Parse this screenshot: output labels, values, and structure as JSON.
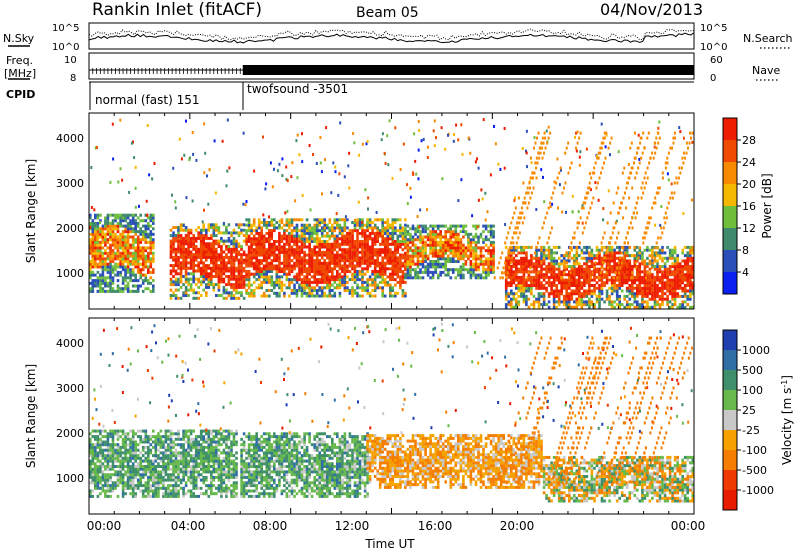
{
  "header": {
    "station": "Rankin Inlet (fitACF)",
    "beam": "Beam 05",
    "date": "04/Nov/2013"
  },
  "status_panel": {
    "nsky": {
      "label": "N.Sky",
      "ticks_left": [
        "10^5",
        "10^0"
      ],
      "label_right": "N.Search",
      "ticks_right": [
        "10^5",
        "10^0"
      ]
    },
    "freq": {
      "label": "Freq.",
      "unit": "[MHz]",
      "ticks_left": [
        "10",
        "8"
      ],
      "label_right": "Nave",
      "ticks_right": [
        "60",
        "0"
      ]
    },
    "cpid": {
      "label": "CPID",
      "modes": [
        {
          "name": "normal (fast) 151",
          "start_hour": 0,
          "end_hour": 6.1
        },
        {
          "name": "twofsound -3501",
          "start_hour": 6.1,
          "end_hour": 24
        }
      ]
    }
  },
  "chart_data": [
    {
      "type": "heatmap",
      "title": "Power",
      "ylabel": "Slant Range [km]",
      "xlabel": "",
      "xlim_hours": [
        0,
        24
      ],
      "ylim": [
        180,
        4500
      ],
      "y_ticks": [
        "1000",
        "2000",
        "3000",
        "4000"
      ],
      "colorbar": {
        "label": "Power [dB]",
        "ticks": [
          "4",
          "8",
          "12",
          "16",
          "20",
          "24",
          "28"
        ],
        "colors": [
          "#0a1ff0",
          "#2b4fb8",
          "#3f8a6d",
          "#6fbf3c",
          "#f5b800",
          "#f78a00",
          "#f04a00",
          "#ee1c00"
        ]
      },
      "echo_regions": [
        {
          "t_start": 0.0,
          "t_end": 2.6,
          "r_min": 600,
          "r_max": 2300,
          "dominant": "mid"
        },
        {
          "t_start": 3.2,
          "t_end": 6.1,
          "r_min": 450,
          "r_max": 2100,
          "dominant": "high"
        },
        {
          "t_start": 6.2,
          "t_end": 12.5,
          "r_min": 500,
          "r_max": 2200,
          "dominant": "high"
        },
        {
          "t_start": 12.5,
          "t_end": 16.0,
          "r_min": 900,
          "r_max": 2100,
          "dominant": "mid"
        },
        {
          "t_start": 16.5,
          "t_end": 24.0,
          "r_min": 250,
          "r_max": 1600,
          "dominant": "high"
        }
      ]
    },
    {
      "type": "heatmap",
      "title": "Velocity",
      "ylabel": "Slant Range [km]",
      "xlabel": "Time UT",
      "xlim_hours": [
        0,
        24
      ],
      "ylim": [
        180,
        4500
      ],
      "x_ticks": [
        "00:00",
        "04:00",
        "08:00",
        "12:00",
        "16:00",
        "20:00",
        "00:00"
      ],
      "y_ticks": [
        "1000",
        "2000",
        "3000",
        "4000"
      ],
      "colorbar": {
        "label": "Velocity [m s",
        "label_sup": "-1",
        "label_end": "]",
        "ticks": [
          "1000",
          "500",
          "100",
          "25",
          "-25",
          "-100",
          "-500",
          "-1000"
        ],
        "colors": [
          "#1f3fb0",
          "#2f6fa6",
          "#3f8f6a",
          "#66b94a",
          "#c8c8c8",
          "#f5a200",
          "#f57e00",
          "#ee3a00",
          "#e81a00"
        ]
      },
      "echo_regions": [
        {
          "t_start": 0.0,
          "t_end": 5.8,
          "r_min": 600,
          "r_max": 2100,
          "dominant": "toward"
        },
        {
          "t_start": 6.0,
          "t_end": 11.0,
          "r_min": 600,
          "r_max": 2000,
          "dominant": "toward"
        },
        {
          "t_start": 11.0,
          "t_end": 18.0,
          "r_min": 800,
          "r_max": 2000,
          "dominant": "away"
        },
        {
          "t_start": 18.0,
          "t_end": 24.0,
          "r_min": 500,
          "r_max": 1500,
          "dominant": "mixed"
        }
      ]
    }
  ]
}
